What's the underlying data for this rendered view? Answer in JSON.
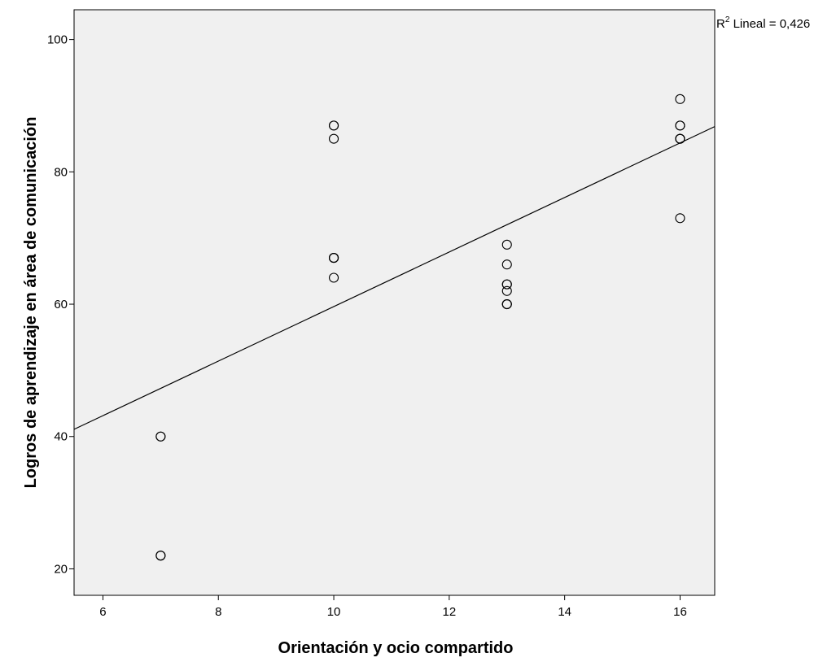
{
  "chart_data": {
    "type": "scatter",
    "title": "",
    "xlabel": "Orientación y ocio compartido",
    "ylabel": "Logros de aprendizaje en área de comunicación",
    "xlim": [
      5.5,
      16.6
    ],
    "ylim": [
      16,
      104.5
    ],
    "x_ticks": [
      6,
      8,
      10,
      12,
      14,
      16
    ],
    "y_ticks": [
      20,
      40,
      60,
      80,
      100
    ],
    "grid": false,
    "legend": "none",
    "colors": {
      "background": "#f0f0f0",
      "marker": "#000000",
      "line": "#000000",
      "frame": "#000000"
    },
    "points": [
      {
        "x": 7,
        "y": 40
      },
      {
        "x": 7,
        "y": 40
      },
      {
        "x": 7,
        "y": 22
      },
      {
        "x": 7,
        "y": 22
      },
      {
        "x": 10,
        "y": 87
      },
      {
        "x": 10,
        "y": 87
      },
      {
        "x": 10,
        "y": 85
      },
      {
        "x": 10,
        "y": 67
      },
      {
        "x": 10,
        "y": 67
      },
      {
        "x": 10,
        "y": 67
      },
      {
        "x": 10,
        "y": 64
      },
      {
        "x": 13,
        "y": 69
      },
      {
        "x": 13,
        "y": 66
      },
      {
        "x": 13,
        "y": 63
      },
      {
        "x": 13,
        "y": 63
      },
      {
        "x": 13,
        "y": 62
      },
      {
        "x": 13,
        "y": 60
      },
      {
        "x": 13,
        "y": 60
      },
      {
        "x": 13,
        "y": 60
      },
      {
        "x": 16,
        "y": 91
      },
      {
        "x": 16,
        "y": 87
      },
      {
        "x": 16,
        "y": 87
      },
      {
        "x": 16,
        "y": 85
      },
      {
        "x": 16,
        "y": 85
      },
      {
        "x": 16,
        "y": 85
      },
      {
        "x": 16,
        "y": 73
      }
    ],
    "fit_line": {
      "type": "linear",
      "slope": 4.122,
      "intercept": 18.42
    },
    "annotation": {
      "base": "R",
      "sup": "2",
      "rest": " Lineal = 0,426"
    }
  }
}
